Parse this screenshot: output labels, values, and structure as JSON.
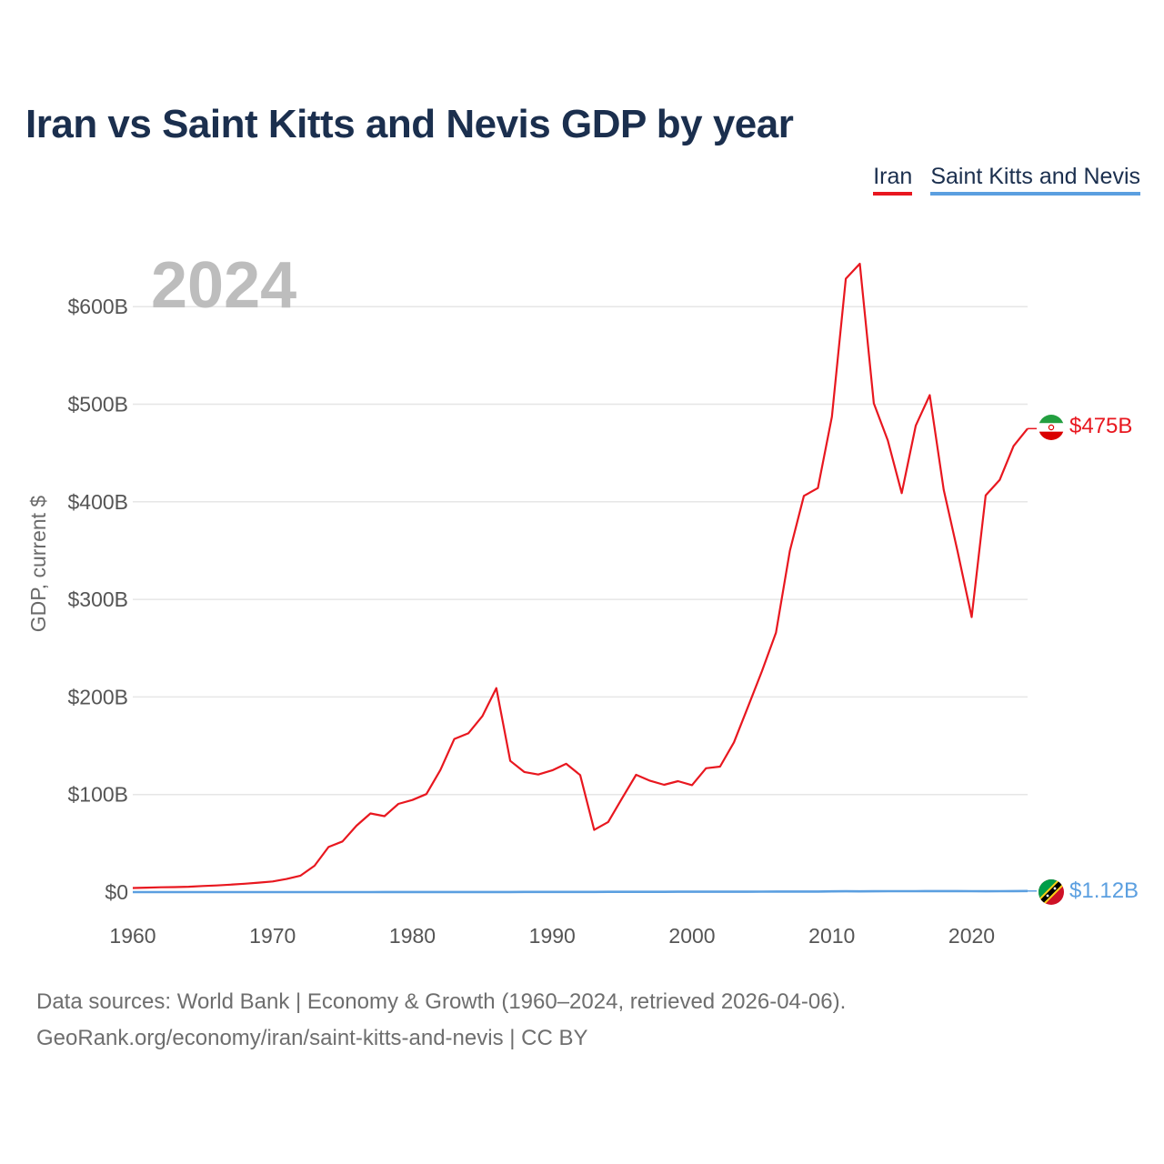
{
  "header": {
    "title": "Iran vs Saint Kitts and Nevis GDP by year"
  },
  "legend": {
    "items": [
      {
        "label": "Iran",
        "color": "#e8171f"
      },
      {
        "label": "Saint Kitts and Nevis",
        "color": "#5b9fe0"
      }
    ]
  },
  "footer": {
    "line1": "Data sources: World Bank | Economy & Growth (1960–2024, retrieved 2026-04-06).",
    "line2": "GeoRank.org/economy/iran/saint-kitts-and-nevis | CC BY"
  },
  "chart_data": {
    "type": "line",
    "title": "Iran vs Saint Kitts and Nevis GDP by year",
    "xlabel": "",
    "ylabel": "GDP, current $",
    "year_label": "2024",
    "xlim": [
      1960,
      2024
    ],
    "ylim": [
      0,
      650
    ],
    "y_unit": "billions USD",
    "x_ticks": [
      1960,
      1970,
      1980,
      1990,
      2000,
      2010,
      2020
    ],
    "y_ticks": [
      {
        "value": 0,
        "label": "$0"
      },
      {
        "value": 100,
        "label": "$100B"
      },
      {
        "value": 200,
        "label": "$200B"
      },
      {
        "value": 300,
        "label": "$300B"
      },
      {
        "value": 400,
        "label": "$400B"
      },
      {
        "value": 500,
        "label": "$500B"
      },
      {
        "value": 600,
        "label": "$600B"
      }
    ],
    "grid": true,
    "series": [
      {
        "name": "Iran",
        "color": "#e8171f",
        "end_label": "$475B",
        "flag_icon": "iran-flag-icon",
        "x": [
          1960,
          1961,
          1962,
          1963,
          1964,
          1965,
          1966,
          1967,
          1968,
          1969,
          1970,
          1971,
          1972,
          1973,
          1974,
          1975,
          1976,
          1977,
          1978,
          1979,
          1980,
          1981,
          1982,
          1983,
          1984,
          1985,
          1986,
          1987,
          1988,
          1989,
          1990,
          1991,
          1992,
          1993,
          1994,
          1995,
          1996,
          1997,
          1998,
          1999,
          2000,
          2001,
          2002,
          2003,
          2004,
          2005,
          2006,
          2007,
          2008,
          2009,
          2010,
          2011,
          2012,
          2013,
          2014,
          2015,
          2016,
          2017,
          2018,
          2019,
          2020,
          2021,
          2022,
          2023,
          2024
        ],
        "values": [
          4.2,
          4.6,
          4.9,
          5.1,
          5.5,
          6.2,
          6.8,
          7.6,
          8.6,
          9.7,
          10.9,
          13.4,
          16.9,
          27.0,
          46.2,
          51.9,
          68.0,
          80.6,
          77.8,
          90.4,
          94.4,
          100.5,
          125.2,
          156.9,
          162.7,
          180.2,
          209.0,
          134.5,
          123.1,
          120.5,
          124.8,
          131.5,
          119.9,
          63.7,
          71.9,
          96.2,
          120.2,
          114.1,
          110.0,
          113.7,
          109.6,
          126.9,
          128.6,
          153.5,
          189.8,
          226.5,
          265.8,
          349.9,
          406.1,
          414.1,
          487.1,
          628.6,
          644.0,
          500.9,
          462.8,
          408.9,
          478.0,
          509.3,
          412.1,
          348.7,
          281.8,
          406.6,
          422.4,
          457.2,
          475.0
        ]
      },
      {
        "name": "Saint Kitts and Nevis",
        "color": "#5b9fe0",
        "end_label": "$1.12B",
        "flag_icon": "saint-kitts-and-nevis-flag-icon",
        "x": [
          1960,
          1961,
          1962,
          1963,
          1964,
          1965,
          1966,
          1967,
          1968,
          1969,
          1970,
          1971,
          1972,
          1973,
          1974,
          1975,
          1976,
          1977,
          1978,
          1979,
          1980,
          1981,
          1982,
          1983,
          1984,
          1985,
          1986,
          1987,
          1988,
          1989,
          1990,
          1991,
          1992,
          1993,
          1994,
          1995,
          1996,
          1997,
          1998,
          1999,
          2000,
          2001,
          2002,
          2003,
          2004,
          2005,
          2006,
          2007,
          2008,
          2009,
          2010,
          2011,
          2012,
          2013,
          2014,
          2015,
          2016,
          2017,
          2018,
          2019,
          2020,
          2021,
          2022,
          2023,
          2024
        ],
        "values": [
          0.012,
          0.012,
          0.013,
          0.013,
          0.014,
          0.015,
          0.015,
          0.016,
          0.016,
          0.017,
          0.017,
          0.019,
          0.022,
          0.024,
          0.028,
          0.032,
          0.033,
          0.042,
          0.047,
          0.054,
          0.067,
          0.074,
          0.078,
          0.081,
          0.091,
          0.096,
          0.112,
          0.131,
          0.157,
          0.171,
          0.176,
          0.189,
          0.198,
          0.217,
          0.239,
          0.255,
          0.274,
          0.31,
          0.32,
          0.335,
          0.36,
          0.377,
          0.388,
          0.392,
          0.419,
          0.459,
          0.514,
          0.54,
          0.598,
          0.599,
          0.758,
          0.797,
          0.769,
          0.812,
          0.888,
          0.912,
          0.939,
          0.991,
          1.036,
          1.053,
          0.896,
          0.876,
          0.964,
          1.07,
          1.12
        ]
      }
    ]
  }
}
